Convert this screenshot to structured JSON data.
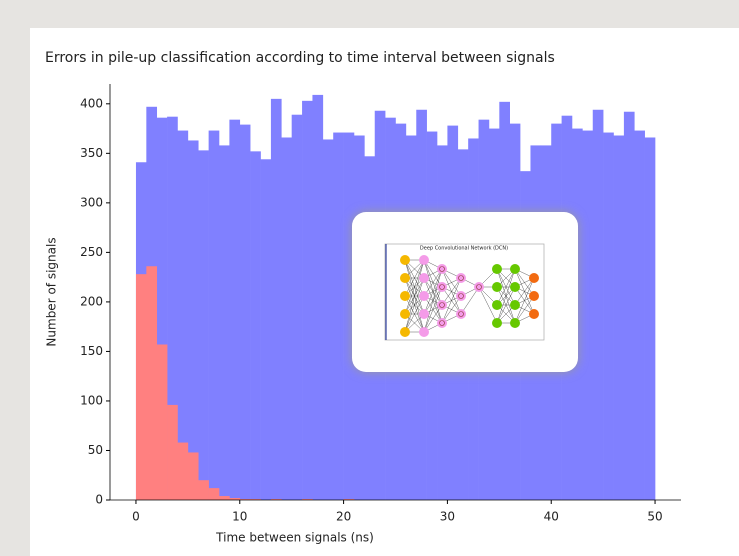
{
  "chart_data": {
    "type": "histogram",
    "title": "Errors in pile-up classification according to time interval between signals",
    "xlabel": "Time between signals (ns)",
    "ylabel": "Number of signals",
    "bins": [
      0,
      1,
      2,
      3,
      4,
      5,
      6,
      7,
      8,
      9,
      10,
      11,
      12,
      13,
      14,
      15,
      16,
      17,
      18,
      19,
      20,
      21,
      22,
      23,
      24,
      25,
      26,
      27,
      28,
      29,
      30,
      31,
      32,
      33,
      34,
      35,
      36,
      37,
      38,
      39,
      40,
      41,
      42,
      43,
      44,
      45,
      46,
      47,
      48,
      49,
      50
    ],
    "series": [
      {
        "color": "#8080ff",
        "values": [
          341,
          397,
          386,
          387,
          373,
          363,
          353,
          373,
          358,
          384,
          379,
          352,
          344,
          405,
          366,
          389,
          403,
          409,
          364,
          371,
          371,
          368,
          347,
          393,
          386,
          380,
          368,
          394,
          372,
          358,
          378,
          354,
          365,
          384,
          375,
          402,
          380,
          332,
          358,
          358,
          380,
          388,
          375,
          373,
          394,
          371,
          368,
          392,
          373,
          366
        ]
      },
      {
        "color": "#ff8080",
        "values": [
          228,
          236,
          157,
          96,
          58,
          48,
          20,
          12,
          4,
          2,
          1,
          1,
          0,
          1,
          0,
          0,
          1,
          0,
          0,
          0,
          1,
          0,
          0,
          0,
          0,
          0,
          0,
          0,
          0,
          0,
          0,
          0,
          0,
          0,
          0,
          0,
          0,
          0,
          0,
          0,
          0,
          0,
          0,
          0,
          0,
          0,
          0,
          0,
          0,
          0
        ]
      }
    ],
    "xlim": [
      -2.5,
      52.5
    ],
    "ylim": [
      0,
      420
    ],
    "xticks": [
      0,
      10,
      20,
      30,
      40,
      50
    ],
    "yticks": [
      0,
      50,
      100,
      150,
      200,
      250,
      300,
      350,
      400
    ]
  },
  "inset_diagram": {
    "title": "Deep Convolutional Network (DCN)"
  }
}
